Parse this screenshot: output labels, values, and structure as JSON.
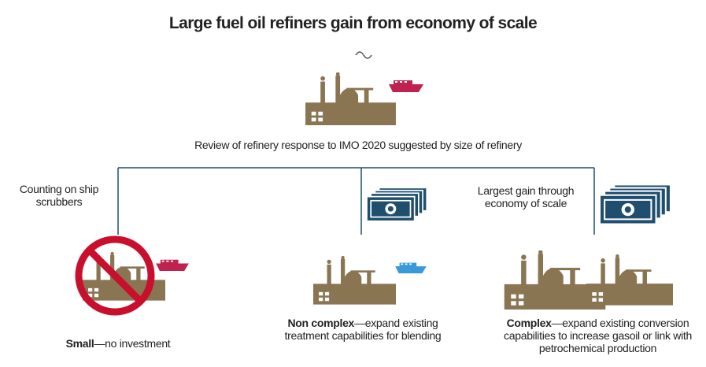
{
  "title": "Large fuel oil refiners gain from economy of scale",
  "subtitle": "Review of refinery response to IMO 2020 suggested by size of refinery",
  "branches": [
    {
      "note": "Counting on ship scrubbers",
      "name": "Small",
      "description": "—no investment"
    },
    {
      "name": "Non complex",
      "description": "—expand existing treatment capabilities for blending"
    },
    {
      "note": "Largest gain through economy of scale",
      "name": "Complex",
      "description": "—expand existing conversion capabilities to increase gasoil or link with petrochemical production"
    }
  ]
}
